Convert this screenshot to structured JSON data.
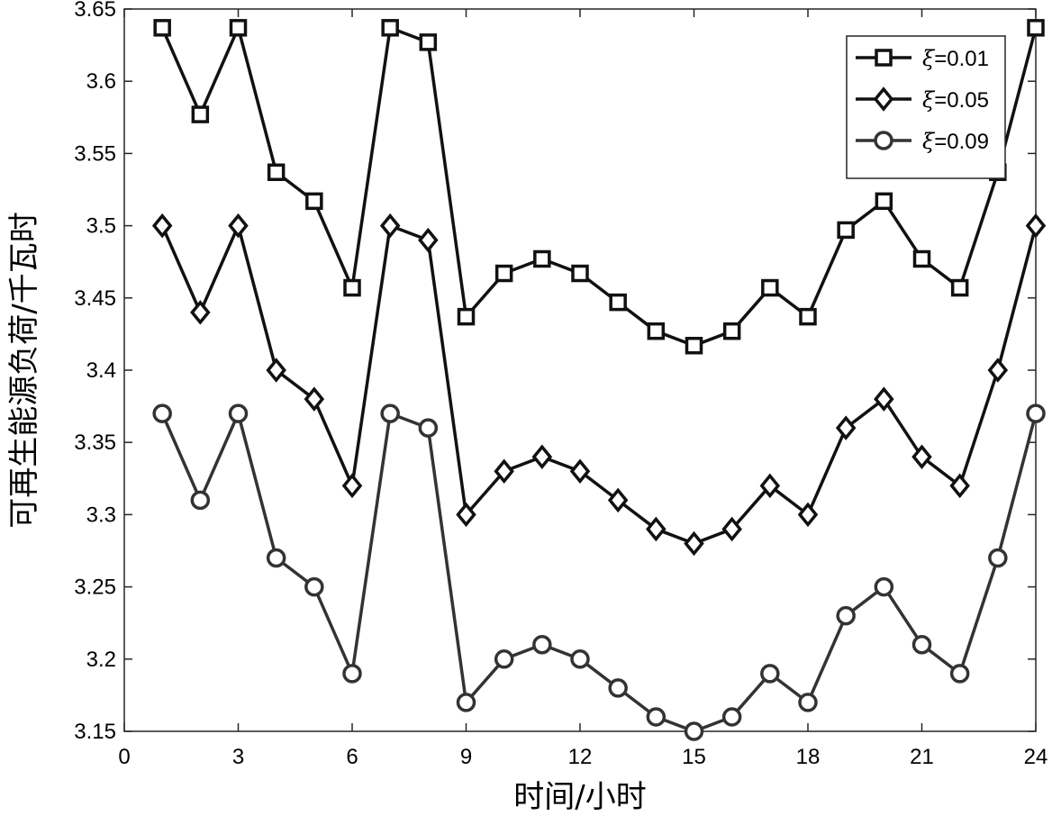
{
  "chart_data": {
    "type": "line",
    "title": "",
    "xlabel": "时间/小时",
    "ylabel": "可再生能源负荷/千瓦时",
    "xlim": [
      0,
      24
    ],
    "ylim": [
      3.15,
      3.65
    ],
    "xticks": [
      0,
      3,
      6,
      9,
      12,
      15,
      18,
      21,
      24
    ],
    "yticks": [
      3.15,
      3.2,
      3.25,
      3.3,
      3.35,
      3.4,
      3.45,
      3.5,
      3.55,
      3.6,
      3.65
    ],
    "xtick_labels": [
      "0",
      "3",
      "6",
      "9",
      "12",
      "15",
      "18",
      "21",
      "24"
    ],
    "ytick_labels": [
      "3.15",
      "3.2",
      "3.25",
      "3.3",
      "3.35",
      "3.4",
      "3.45",
      "3.5",
      "3.55",
      "3.6",
      "3.65"
    ],
    "grid": false,
    "legend_position": "top-right",
    "x": [
      1,
      2,
      3,
      4,
      5,
      6,
      7,
      8,
      9,
      10,
      11,
      12,
      13,
      14,
      15,
      16,
      17,
      18,
      19,
      20,
      21,
      22,
      23,
      24
    ],
    "series": [
      {
        "name": "ξ=0.01",
        "legend_symbol": "ξ",
        "legend_value": "=0.01",
        "marker": "square",
        "color": "#111111",
        "values": [
          3.637,
          3.577,
          3.637,
          3.537,
          3.517,
          3.457,
          3.637,
          3.627,
          3.437,
          3.467,
          3.477,
          3.467,
          3.447,
          3.427,
          3.417,
          3.427,
          3.457,
          3.437,
          3.497,
          3.517,
          3.477,
          3.457,
          3.537,
          3.637
        ]
      },
      {
        "name": "ξ=0.05",
        "legend_symbol": "ξ",
        "legend_value": "=0.05",
        "marker": "diamond",
        "color": "#111111",
        "values": [
          3.5,
          3.44,
          3.5,
          3.4,
          3.38,
          3.32,
          3.5,
          3.49,
          3.3,
          3.33,
          3.34,
          3.33,
          3.31,
          3.29,
          3.28,
          3.29,
          3.32,
          3.3,
          3.36,
          3.38,
          3.34,
          3.32,
          3.4,
          3.5
        ]
      },
      {
        "name": "ξ=0.09",
        "legend_symbol": "ξ",
        "legend_value": "=0.09",
        "marker": "circle",
        "color": "#333333",
        "values": [
          3.37,
          3.31,
          3.37,
          3.27,
          3.25,
          3.19,
          3.37,
          3.36,
          3.17,
          3.2,
          3.21,
          3.2,
          3.18,
          3.16,
          3.15,
          3.16,
          3.19,
          3.17,
          3.23,
          3.25,
          3.21,
          3.19,
          3.27,
          3.37
        ]
      }
    ]
  }
}
